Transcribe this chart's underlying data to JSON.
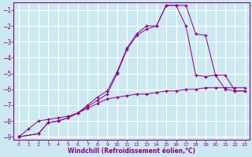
{
  "xlabel": "Windchill (Refroidissement éolien,°C)",
  "background_color": "#cce8f0",
  "grid_color": "#ffffff",
  "line_color": "#880088",
  "xlim": [
    -0.5,
    23.5
  ],
  "ylim": [
    -9.2,
    -0.5
  ],
  "xticks": [
    0,
    1,
    2,
    3,
    4,
    5,
    6,
    7,
    8,
    9,
    10,
    11,
    12,
    13,
    14,
    15,
    16,
    17,
    18,
    19,
    20,
    21,
    22,
    23
  ],
  "yticks": [
    -9,
    -8,
    -7,
    -6,
    -5,
    -4,
    -3,
    -2,
    -1
  ],
  "line1_x": [
    0,
    1,
    2,
    3,
    4,
    5,
    6,
    7,
    8,
    9,
    10,
    11,
    12,
    13,
    14,
    15,
    16,
    17,
    18,
    19,
    20,
    21,
    22,
    23
  ],
  "line1_y": [
    -9.0,
    -8.5,
    -8.0,
    -7.9,
    -7.8,
    -7.7,
    -7.5,
    -7.2,
    -6.9,
    -6.6,
    -6.5,
    -6.4,
    -6.3,
    -6.3,
    -6.2,
    -6.1,
    -6.1,
    -6.0,
    -6.0,
    -5.9,
    -5.9,
    -5.9,
    -5.9,
    -5.9
  ],
  "line2_x": [
    0,
    2,
    3,
    4,
    5,
    6,
    7,
    8,
    9,
    10,
    11,
    12,
    13,
    14,
    15,
    16,
    17,
    18,
    19,
    20,
    21,
    22,
    23
  ],
  "line2_y": [
    -9.0,
    -8.8,
    -8.1,
    -8.0,
    -7.8,
    -7.5,
    -7.1,
    -6.7,
    -6.3,
    -5.0,
    -3.5,
    -2.6,
    -2.2,
    -2.0,
    -0.7,
    -0.7,
    -2.0,
    -5.1,
    -5.2,
    -5.1,
    -6.0,
    -6.1,
    -6.1
  ],
  "line3_x": [
    0,
    2,
    3,
    4,
    5,
    6,
    7,
    8,
    9,
    10,
    11,
    12,
    13,
    14,
    15,
    16,
    17,
    18,
    19,
    20,
    21,
    22,
    23
  ],
  "line3_y": [
    -9.0,
    -8.8,
    -8.1,
    -8.0,
    -7.8,
    -7.5,
    -7.0,
    -6.5,
    -6.1,
    -4.9,
    -3.4,
    -2.5,
    -2.0,
    -2.0,
    -0.7,
    -0.7,
    -0.7,
    -2.5,
    -2.6,
    -5.1,
    -5.1,
    -6.1,
    -6.1
  ]
}
